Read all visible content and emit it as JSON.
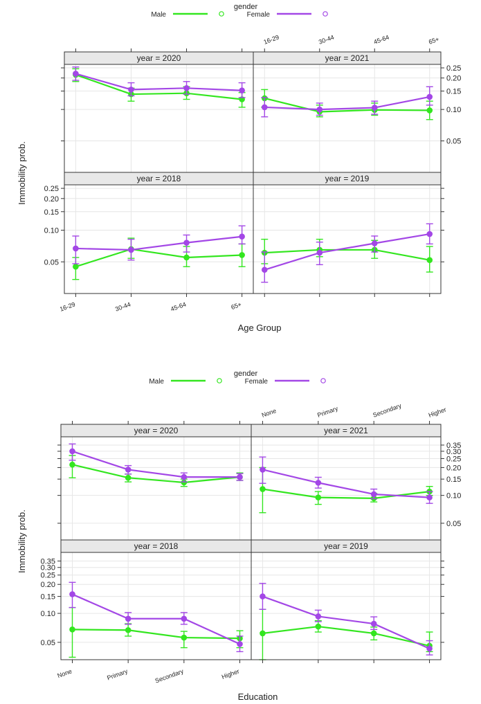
{
  "chart_data": [
    {
      "type": "line",
      "legend_title": "gender",
      "legend": [
        {
          "name": "Male",
          "color": "#33e61f"
        },
        {
          "name": "Female",
          "color": "#a347e6"
        }
      ],
      "xlabel": "Age Group",
      "ylabel": "Immobility prob.",
      "categories": [
        "16-29",
        "30-44",
        "45-64",
        "65+"
      ],
      "yscale": "log",
      "ylim": [
        0.025,
        0.27
      ],
      "yticks": [
        0.05,
        0.1,
        0.15,
        0.2,
        0.25
      ],
      "yticklabels": [
        "0.05",
        "0.10",
        "0.15",
        "0.20",
        "0.25"
      ],
      "panels": [
        {
          "title": "year = 2020",
          "series": [
            {
              "name": "Male",
              "values": [
                0.215,
                0.14,
                0.143,
                0.125
              ],
              "lower": [
                0.185,
                0.12,
                0.125,
                0.105
              ],
              "upper": [
                0.245,
                0.16,
                0.165,
                0.145
              ]
            },
            {
              "name": "Female",
              "values": [
                0.22,
                0.155,
                0.16,
                0.152
              ],
              "lower": [
                0.19,
                0.135,
                0.14,
                0.13
              ],
              "upper": [
                0.255,
                0.18,
                0.185,
                0.18
              ]
            }
          ]
        },
        {
          "title": "year = 2021",
          "series": [
            {
              "name": "Male",
              "values": [
                0.128,
                0.095,
                0.099,
                0.098
              ],
              "lower": [
                0.105,
                0.085,
                0.088,
                0.08
              ],
              "upper": [
                0.155,
                0.11,
                0.115,
                0.12
              ]
            },
            {
              "name": "Female",
              "values": [
                0.105,
                0.1,
                0.104,
                0.132
              ],
              "lower": [
                0.085,
                0.088,
                0.09,
                0.11
              ],
              "upper": [
                0.13,
                0.115,
                0.12,
                0.165
              ]
            }
          ]
        },
        {
          "title": "year = 2018",
          "series": [
            {
              "name": "Male",
              "values": [
                0.045,
                0.066,
                0.055,
                0.058
              ],
              "lower": [
                0.034,
                0.054,
                0.045,
                0.045
              ],
              "upper": [
                0.055,
                0.084,
                0.07,
                0.074
              ]
            },
            {
              "name": "Female",
              "values": [
                0.067,
                0.065,
                0.076,
                0.087
              ],
              "lower": [
                0.048,
                0.052,
                0.062,
                0.074
              ],
              "upper": [
                0.088,
                0.082,
                0.09,
                0.11
              ]
            }
          ]
        },
        {
          "title": "year = 2019",
          "series": [
            {
              "name": "Male",
              "values": [
                0.061,
                0.065,
                0.065,
                0.052
              ],
              "lower": [
                0.048,
                0.056,
                0.054,
                0.04
              ],
              "upper": [
                0.082,
                0.082,
                0.08,
                0.07
              ]
            },
            {
              "name": "Female",
              "values": [
                0.042,
                0.061,
                0.075,
                0.092
              ],
              "lower": [
                0.032,
                0.047,
                0.062,
                0.074
              ],
              "upper": [
                0.062,
                0.077,
                0.088,
                0.115
              ]
            }
          ]
        }
      ]
    },
    {
      "type": "line",
      "legend_title": "gender",
      "legend": [
        {
          "name": "Male",
          "color": "#33e61f"
        },
        {
          "name": "Female",
          "color": "#a347e6"
        }
      ],
      "xlabel": "Education",
      "ylabel": "Immobility prob.",
      "categories": [
        "None",
        "Primary",
        "Secondary",
        "Higher"
      ],
      "yscale": "log",
      "ylim": [
        0.033,
        0.43
      ],
      "yticks": [
        0.05,
        0.1,
        0.15,
        0.2,
        0.25,
        0.3,
        0.35
      ],
      "yticklabels": [
        "0.05",
        "0.10",
        "0.15",
        "0.20",
        "0.25",
        "0.30",
        "0.35"
      ],
      "panels": [
        {
          "title": "year = 2020",
          "series": [
            {
              "name": "Male",
              "values": [
                0.215,
                0.155,
                0.138,
                0.158
              ],
              "lower": [
                0.155,
                0.14,
                0.125,
                0.145
              ],
              "upper": [
                0.27,
                0.17,
                0.15,
                0.175
              ]
            },
            {
              "name": "Female",
              "values": [
                0.3,
                0.19,
                0.158,
                0.158
              ],
              "lower": [
                0.24,
                0.17,
                0.14,
                0.145
              ],
              "upper": [
                0.36,
                0.21,
                0.175,
                0.172
              ]
            }
          ]
        },
        {
          "title": "year = 2021",
          "series": [
            {
              "name": "Male",
              "values": [
                0.117,
                0.095,
                0.093,
                0.11
              ],
              "lower": [
                0.065,
                0.08,
                0.085,
                0.1
              ],
              "upper": [
                0.2,
                0.11,
                0.105,
                0.125
              ]
            },
            {
              "name": "Female",
              "values": [
                0.19,
                0.137,
                0.103,
                0.095
              ],
              "lower": [
                0.135,
                0.12,
                0.092,
                0.082
              ],
              "upper": [
                0.26,
                0.157,
                0.117,
                0.11
              ]
            }
          ]
        },
        {
          "title": "year = 2018",
          "series": [
            {
              "name": "Male",
              "values": [
                0.068,
                0.067,
                0.056,
                0.055
              ],
              "lower": [
                0.035,
                0.058,
                0.044,
                0.044
              ],
              "upper": [
                0.115,
                0.078,
                0.065,
                0.066
              ]
            },
            {
              "name": "Female",
              "values": [
                0.158,
                0.088,
                0.088,
                0.048
              ],
              "lower": [
                0.115,
                0.077,
                0.077,
                0.04
              ],
              "upper": [
                0.21,
                0.102,
                0.102,
                0.058
              ]
            }
          ]
        },
        {
          "title": "year = 2019",
          "series": [
            {
              "name": "Male",
              "values": [
                0.062,
                0.073,
                0.062,
                0.046
              ],
              "lower": [
                0.033,
                0.064,
                0.053,
                0.04
              ],
              "upper": [
                0.11,
                0.084,
                0.072,
                0.064
              ]
            },
            {
              "name": "Female",
              "values": [
                0.15,
                0.093,
                0.078,
                0.043
              ],
              "lower": [
                0.11,
                0.082,
                0.068,
                0.037
              ],
              "upper": [
                0.205,
                0.108,
                0.092,
                0.052
              ]
            }
          ]
        }
      ]
    }
  ]
}
